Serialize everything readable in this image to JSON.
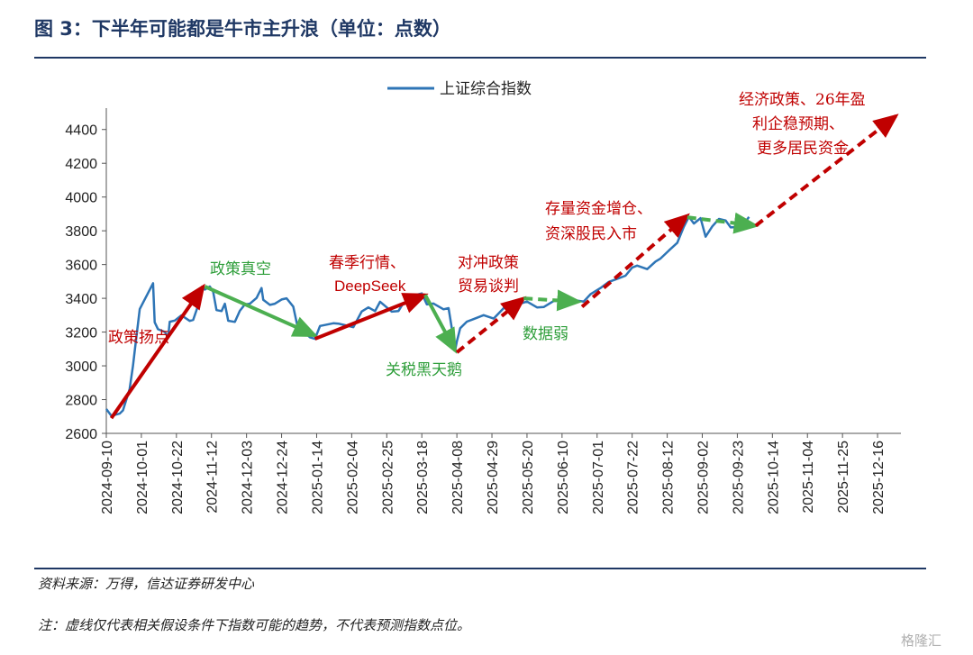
{
  "title": "图 3：下半年可能都是牛市主升浪（单位：点数）",
  "source": "资料来源：万得，信达证券研发中心",
  "note": "注：虚线仅代表相关假设条件下指数可能的趋势，不代表预测指数点位。",
  "watermark": "格隆汇",
  "chart_data": {
    "type": "line",
    "title": "图 3：下半年可能都是牛市主升浪（单位：点数）",
    "ylim": [
      2600,
      4500
    ],
    "yticks": [
      2600,
      2800,
      3000,
      3200,
      3400,
      3600,
      3800,
      4000,
      4200,
      4400
    ],
    "xlim": [
      "2024-09-10",
      "2025-12-30"
    ],
    "xticks": [
      "2024-09-10",
      "2024-10-01",
      "2024-10-22",
      "2024-11-12",
      "2024-12-03",
      "2024-12-24",
      "2025-01-14",
      "2025-02-04",
      "2025-02-25",
      "2025-03-18",
      "2025-04-08",
      "2025-04-29",
      "2025-05-20",
      "2025-06-10",
      "2025-07-01",
      "2025-07-22",
      "2025-08-12",
      "2025-09-02",
      "2025-09-23",
      "2025-10-14",
      "2025-11-04",
      "2025-11-25",
      "2025-12-16"
    ],
    "legend": "top-center",
    "series": [
      {
        "name": "上证综合指数",
        "color": "#2e75b6",
        "x": [
          "2024-09-10",
          "2024-09-13",
          "2024-09-18",
          "2024-09-20",
          "2024-09-24",
          "2024-09-26",
          "2024-09-27",
          "2024-09-30",
          "2024-10-08",
          "2024-10-09",
          "2024-10-11",
          "2024-10-15",
          "2024-10-17",
          "2024-10-18",
          "2024-10-21",
          "2024-10-25",
          "2024-10-30",
          "2024-11-01",
          "2024-11-05",
          "2024-11-07",
          "2024-11-08",
          "2024-11-11",
          "2024-11-13",
          "2024-11-15",
          "2024-11-18",
          "2024-11-20",
          "2024-11-22",
          "2024-11-26",
          "2024-11-29",
          "2024-12-02",
          "2024-12-05",
          "2024-12-09",
          "2024-12-10",
          "2024-12-12",
          "2024-12-13",
          "2024-12-17",
          "2024-12-20",
          "2024-12-24",
          "2024-12-27",
          "2024-12-31",
          "2025-01-03",
          "2025-01-06",
          "2025-01-10",
          "2025-01-13",
          "2025-01-16",
          "2025-01-20",
          "2025-01-24",
          "2025-01-27",
          "2025-02-05",
          "2025-02-10",
          "2025-02-14",
          "2025-02-18",
          "2025-02-21",
          "2025-02-25",
          "2025-02-28",
          "2025-03-04",
          "2025-03-07",
          "2025-03-11",
          "2025-03-14",
          "2025-03-18",
          "2025-03-21",
          "2025-03-25",
          "2025-03-31",
          "2025-04-03",
          "2025-04-07",
          "2025-04-08",
          "2025-04-10",
          "2025-04-14",
          "2025-04-18",
          "2025-04-24",
          "2025-04-30",
          "2025-05-07",
          "2025-05-12",
          "2025-05-16",
          "2025-05-20",
          "2025-05-26",
          "2025-05-30",
          "2025-06-05",
          "2025-06-10",
          "2025-06-13",
          "2025-06-18",
          "2025-06-23",
          "2025-06-27",
          "2025-07-03",
          "2025-07-08",
          "2025-07-14",
          "2025-07-18",
          "2025-07-22",
          "2025-07-25",
          "2025-07-31",
          "2025-08-05",
          "2025-08-08",
          "2025-08-13",
          "2025-08-18",
          "2025-08-22",
          "2025-08-25",
          "2025-08-28",
          "2025-09-01",
          "2025-09-04",
          "2025-09-08",
          "2025-09-12",
          "2025-09-16",
          "2025-09-19",
          "2025-09-23",
          "2025-09-26",
          "2025-09-30"
        ],
        "y": [
          2744,
          2704,
          2717,
          2736,
          2863,
          3000,
          3087,
          3336,
          3489,
          3258,
          3217,
          3201,
          3169,
          3261,
          3268,
          3299,
          3266,
          3272,
          3387,
          3470,
          3452,
          3470,
          3439,
          3330,
          3324,
          3368,
          3267,
          3260,
          3326,
          3364,
          3368,
          3402,
          3422,
          3461,
          3391,
          3361,
          3368,
          3393,
          3400,
          3351,
          3211,
          3206,
          3169,
          3160,
          3236,
          3244,
          3252,
          3250,
          3229,
          3322,
          3346,
          3324,
          3380,
          3346,
          3321,
          3325,
          3373,
          3380,
          3419,
          3429,
          3364,
          3369,
          3335,
          3342,
          3096,
          3145,
          3223,
          3262,
          3277,
          3300,
          3280,
          3352,
          3370,
          3368,
          3381,
          3346,
          3348,
          3384,
          3385,
          3377,
          3388,
          3381,
          3424,
          3461,
          3497,
          3519,
          3534,
          3582,
          3594,
          3573,
          3618,
          3636,
          3683,
          3728,
          3825,
          3883,
          3843,
          3875,
          3765,
          3826,
          3870,
          3861,
          3820,
          3822,
          3828,
          3882
        ]
      }
    ],
    "arrows": [
      {
        "label": "政策扬点",
        "color": "#c00000",
        "from": [
          "2024-09-13",
          2690
        ],
        "to": [
          "2024-11-07",
          3470
        ]
      },
      {
        "label": "政策真空",
        "color": "#4caf50",
        "from": [
          "2024-11-08",
          3470
        ],
        "to": [
          "2025-01-13",
          3180
        ]
      },
      {
        "label": "春季行情、DeepSeek",
        "color": "#c00000",
        "from": [
          "2025-01-13",
          3160
        ],
        "to": [
          "2025-03-20",
          3420
        ]
      },
      {
        "label": "关税黑天鹅",
        "color": "#4caf50",
        "from": [
          "2025-03-20",
          3420
        ],
        "to": [
          "2025-04-07",
          3090
        ]
      },
      {
        "label": "对冲政策 贸易谈判",
        "color": "#c00000",
        "dashed": true,
        "from": [
          "2025-04-08",
          3080
        ],
        "to": [
          "2025-05-18",
          3400
        ]
      },
      {
        "label": "数据弱",
        "color": "#4caf50",
        "dashed": true,
        "from": [
          "2025-05-18",
          3400
        ],
        "to": [
          "2025-06-20",
          3380
        ]
      },
      {
        "label": "存量资金增仓、资深股民入市",
        "color": "#c00000",
        "dashed": true,
        "from": [
          "2025-06-22",
          3350
        ],
        "to": [
          "2025-08-24",
          3890
        ]
      },
      {
        "label": "",
        "color": "#4caf50",
        "dashed": true,
        "from": [
          "2025-08-24",
          3880
        ],
        "to": [
          "2025-10-04",
          3830
        ]
      },
      {
        "label": "经济政策、26年盈利企稳预期、更多居民资金",
        "color": "#c00000",
        "dashed": true,
        "from": [
          "2025-10-04",
          3830
        ],
        "to": [
          "2025-12-27",
          4480
        ]
      }
    ]
  },
  "legend_label": "上证综合指数",
  "annotations": {
    "a1": "政策扬点",
    "a2": "政策真空",
    "a3_line1": "春季行情、",
    "a3_line2": "DeepSeek",
    "a4": "关税黑天鹅",
    "a5_line1": "对冲政策",
    "a5_line2": "贸易谈判",
    "a6": "数据弱",
    "a7_line1": "存量资金增仓、",
    "a7_line2": "资深股民入市",
    "a8_line1": "经济政策、26年盈",
    "a8_line2": "利企稳预期、",
    "a8_line3": "更多居民资金"
  }
}
